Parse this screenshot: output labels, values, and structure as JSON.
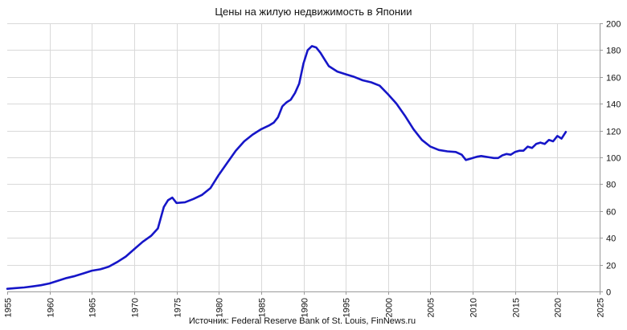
{
  "chart_data": {
    "type": "line",
    "title": "Цены на жилую недвижимость в Японии",
    "source": "Источник: Federal Reserve Bank of St. Louis, FinNews.ru",
    "xlabel": "",
    "ylabel": "",
    "xlim": [
      1955,
      2025
    ],
    "ylim": [
      0,
      200
    ],
    "x_ticks": [
      1955,
      1960,
      1965,
      1970,
      1975,
      1980,
      1985,
      1990,
      1995,
      2000,
      2005,
      2010,
      2015,
      2020,
      2025
    ],
    "y_ticks": [
      0,
      20,
      40,
      60,
      80,
      100,
      120,
      140,
      160,
      180,
      200
    ],
    "y_axis_side": "right",
    "grid": true,
    "legend": "none",
    "series": [
      {
        "color": "#1616c8",
        "points": [
          [
            1955.0,
            2.0
          ],
          [
            1956.0,
            2.5
          ],
          [
            1957.0,
            3.0
          ],
          [
            1958.0,
            3.8
          ],
          [
            1959.0,
            4.7
          ],
          [
            1960.0,
            6.0
          ],
          [
            1961.0,
            8.0
          ],
          [
            1962.0,
            10.0
          ],
          [
            1963.0,
            11.5
          ],
          [
            1964.0,
            13.5
          ],
          [
            1965.0,
            15.5
          ],
          [
            1966.0,
            16.5
          ],
          [
            1967.0,
            18.5
          ],
          [
            1968.0,
            22.0
          ],
          [
            1969.0,
            26.0
          ],
          [
            1970.0,
            31.5
          ],
          [
            1971.0,
            37.0
          ],
          [
            1972.0,
            41.5
          ],
          [
            1972.8,
            47.0
          ],
          [
            1973.5,
            63.0
          ],
          [
            1974.0,
            68.0
          ],
          [
            1974.5,
            70.0
          ],
          [
            1975.0,
            66.0
          ],
          [
            1976.0,
            66.5
          ],
          [
            1977.0,
            69.0
          ],
          [
            1978.0,
            72.0
          ],
          [
            1979.0,
            77.0
          ],
          [
            1980.0,
            87.0
          ],
          [
            1981.0,
            96.0
          ],
          [
            1982.0,
            105.0
          ],
          [
            1983.0,
            112.0
          ],
          [
            1984.0,
            117.0
          ],
          [
            1985.0,
            121.0
          ],
          [
            1986.0,
            124.0
          ],
          [
            1986.5,
            126.0
          ],
          [
            1987.0,
            130.0
          ],
          [
            1987.5,
            138.0
          ],
          [
            1988.0,
            141.0
          ],
          [
            1988.5,
            143.0
          ],
          [
            1989.0,
            148.0
          ],
          [
            1989.5,
            155.0
          ],
          [
            1990.0,
            170.0
          ],
          [
            1990.5,
            180.0
          ],
          [
            1991.0,
            183.0
          ],
          [
            1991.5,
            182.0
          ],
          [
            1992.0,
            178.0
          ],
          [
            1992.5,
            173.0
          ],
          [
            1993.0,
            168.0
          ],
          [
            1994.0,
            164.0
          ],
          [
            1995.0,
            162.0
          ],
          [
            1996.0,
            160.0
          ],
          [
            1997.0,
            157.5
          ],
          [
            1998.0,
            156.0
          ],
          [
            1999.0,
            153.5
          ],
          [
            2000.0,
            147.0
          ],
          [
            2001.0,
            140.0
          ],
          [
            2002.0,
            131.0
          ],
          [
            2003.0,
            121.0
          ],
          [
            2004.0,
            113.0
          ],
          [
            2005.0,
            108.0
          ],
          [
            2006.0,
            105.5
          ],
          [
            2007.0,
            104.5
          ],
          [
            2008.0,
            104.0
          ],
          [
            2008.7,
            102.0
          ],
          [
            2009.2,
            98.0
          ],
          [
            2009.7,
            99.0
          ],
          [
            2010.0,
            99.5
          ],
          [
            2010.5,
            100.5
          ],
          [
            2011.0,
            101.0
          ],
          [
            2011.5,
            100.5
          ],
          [
            2012.0,
            100.0
          ],
          [
            2012.5,
            99.5
          ],
          [
            2013.0,
            99.5
          ],
          [
            2013.5,
            101.5
          ],
          [
            2014.0,
            102.5
          ],
          [
            2014.5,
            102.0
          ],
          [
            2015.0,
            104.0
          ],
          [
            2015.5,
            105.0
          ],
          [
            2016.0,
            105.0
          ],
          [
            2016.5,
            108.0
          ],
          [
            2017.0,
            107.0
          ],
          [
            2017.5,
            110.0
          ],
          [
            2018.0,
            111.0
          ],
          [
            2018.5,
            110.0
          ],
          [
            2019.0,
            113.0
          ],
          [
            2019.5,
            112.0
          ],
          [
            2020.0,
            116.0
          ],
          [
            2020.5,
            114.0
          ],
          [
            2021.0,
            119.0
          ]
        ]
      }
    ]
  }
}
